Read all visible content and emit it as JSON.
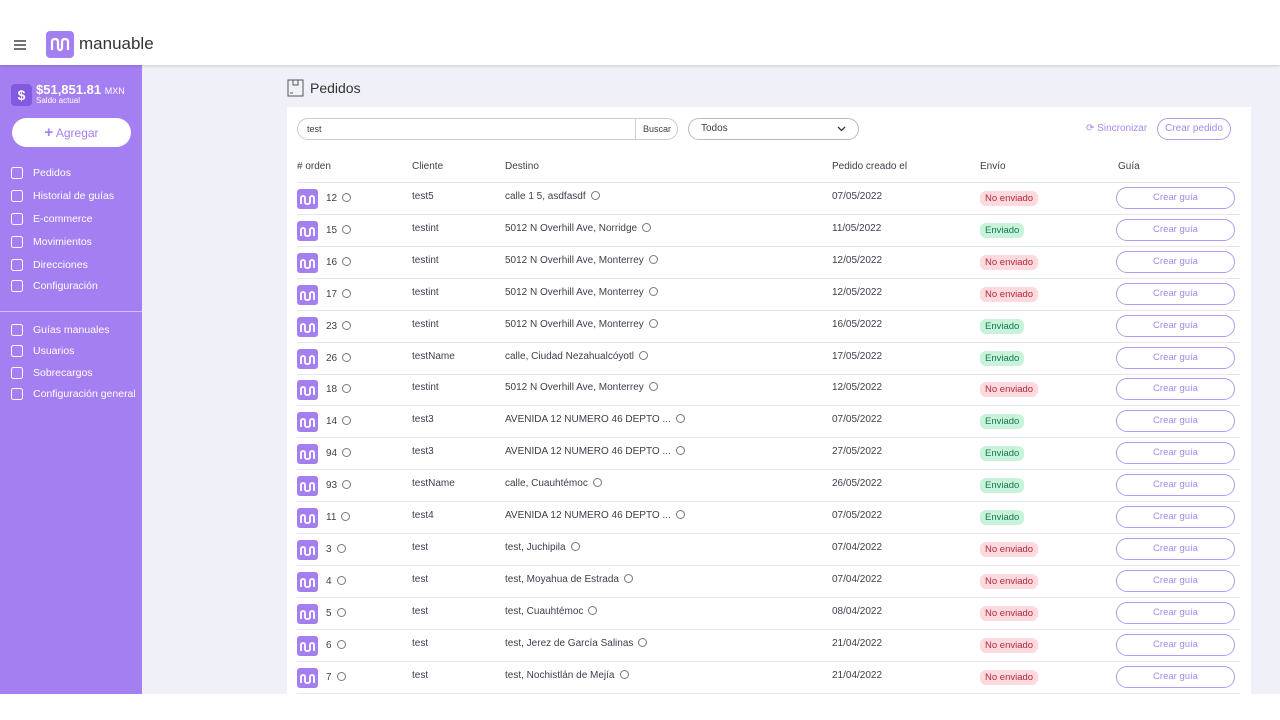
{
  "header": {
    "brand": "manuable"
  },
  "sidebar": {
    "balance": "$51,851.81",
    "currency": "MXN",
    "balance_label": "Saldo actual",
    "add_button": "Agregar",
    "nav": [
      "Pedidos",
      "Historial de guías",
      "E-commerce",
      "Movimientos",
      "Direcciones",
      "Configuración"
    ],
    "admin_nav": [
      "Guías manuales",
      "Usuarios",
      "Sobrecargos",
      "Configuración general"
    ]
  },
  "main": {
    "title": "Pedidos",
    "search_value": "test",
    "search_button": "Buscar",
    "filter": "Todos",
    "sync": "Sincronizar",
    "create_button": "Crear pedido"
  },
  "table": {
    "columns": [
      "# orden",
      "Cliente",
      "Destino",
      "Pedido creado el",
      "Envío",
      "Guía"
    ],
    "rows": [
      [
        "12",
        "test5",
        "calle 1 5, asdfasdf",
        "07/05/2022",
        "No enviado",
        "Crear guía"
      ],
      [
        "15",
        "testint",
        "5012 N Overhill Ave, Norridge",
        "11/05/2022",
        "Enviado",
        "Crear guía"
      ],
      [
        "16",
        "testint",
        "5012 N Overhill Ave, Monterrey",
        "12/05/2022",
        "No enviado",
        "Crear guía"
      ],
      [
        "17",
        "testint",
        "5012 N Overhill Ave, Monterrey",
        "12/05/2022",
        "No enviado",
        "Crear guía"
      ],
      [
        "23",
        "testint",
        "5012 N Overhill Ave, Monterrey",
        "16/05/2022",
        "Enviado",
        "Crear guía"
      ],
      [
        "26",
        "testName",
        "calle, Ciudad Nezahualcóyotl",
        "17/05/2022",
        "Enviado",
        "Crear guía"
      ],
      [
        "18",
        "testint",
        "5012 N Overhill Ave, Monterrey",
        "12/05/2022",
        "No enviado",
        "Crear guía"
      ],
      [
        "14",
        "test3",
        "AVENIDA 12 NUMERO 46 DEPTO ...",
        "07/05/2022",
        "Enviado",
        "Crear guía"
      ],
      [
        "94",
        "test3",
        "AVENIDA 12 NUMERO 46 DEPTO ...",
        "27/05/2022",
        "Enviado",
        "Crear guía"
      ],
      [
        "93",
        "testName",
        "calle, Cuauhtémoc",
        "26/05/2022",
        "Enviado",
        "Crear guía"
      ],
      [
        "11",
        "test4",
        "AVENIDA 12 NUMERO 46 DEPTO ...",
        "07/05/2022",
        "Enviado",
        "Crear guía"
      ],
      [
        "3",
        "test",
        "test, Juchipila",
        "07/04/2022",
        "No enviado",
        "Crear guía"
      ],
      [
        "4",
        "test",
        "test, Moyahua de Estrada",
        "07/04/2022",
        "No enviado",
        "Crear guía"
      ],
      [
        "5",
        "test",
        "test, Cuauhtémoc",
        "08/04/2022",
        "No enviado",
        "Crear guía"
      ],
      [
        "6",
        "test",
        "test, Jerez de García Salinas",
        "21/04/2022",
        "No enviado",
        "Crear guía"
      ],
      [
        "7",
        "test",
        "test, Nochistlán de Mejía",
        "21/04/2022",
        "No enviado",
        "Crear guía"
      ]
    ],
    "status_colors": [
      "#fcdade",
      "#c8f2db",
      "#fcdade",
      "#fcdade",
      "#c8f2db",
      "#c8f2db",
      "#fcdade",
      "#c8f2db",
      "#c8f2db",
      "#c8f2db",
      "#c8f2db",
      "#fcdade",
      "#fcdade",
      "#fcdade",
      "#fcdade",
      "#fcdade"
    ]
  }
}
